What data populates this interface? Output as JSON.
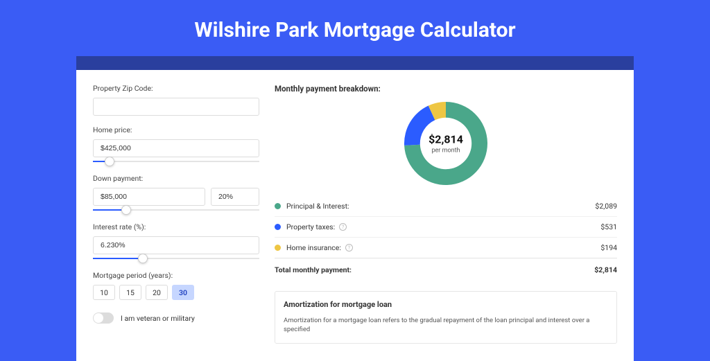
{
  "page_title": "Wilshire Park Mortgage Calculator",
  "accent_color": "#3a5cf5",
  "band_color": "#2a3f9e",
  "card_bg": "#ffffff",
  "form": {
    "zip_label": "Property Zip Code:",
    "zip_value": "",
    "home_price_label": "Home price:",
    "home_price_value": "$425,000",
    "home_price_slider_pct": 10,
    "down_payment_label": "Down payment:",
    "down_payment_value": "$85,000",
    "down_payment_pct_value": "20%",
    "down_payment_slider_pct": 20,
    "interest_label": "Interest rate (%):",
    "interest_value": "6.230%",
    "interest_slider_pct": 30,
    "period_label": "Mortgage period (years):",
    "periods": [
      "10",
      "15",
      "20",
      "30"
    ],
    "period_active_index": 3,
    "veteran_label": "I am veteran or military",
    "veteran_on": false
  },
  "breakdown": {
    "title": "Monthly payment breakdown:",
    "center_amount": "$2,814",
    "center_sub": "per month",
    "donut": {
      "size": 120,
      "inner_ratio": 0.62,
      "slices": [
        {
          "color": "#4aa78a",
          "value": 2089
        },
        {
          "color": "#2b5cff",
          "value": 531
        },
        {
          "color": "#eec643",
          "value": 194
        }
      ]
    },
    "rows": [
      {
        "dot": "#4aa78a",
        "label": "Principal & Interest:",
        "value": "$2,089",
        "info": false
      },
      {
        "dot": "#2b5cff",
        "label": "Property taxes:",
        "value": "$531",
        "info": true
      },
      {
        "dot": "#eec643",
        "label": "Home insurance:",
        "value": "$194",
        "info": true
      }
    ],
    "total_label": "Total monthly payment:",
    "total_value": "$2,814"
  },
  "amortization": {
    "title": "Amortization for mortgage loan",
    "text": "Amortization for a mortgage loan refers to the gradual repayment of the loan principal and interest over a specified"
  }
}
